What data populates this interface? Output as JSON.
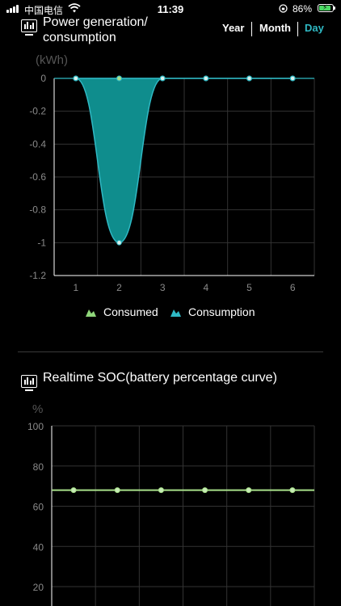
{
  "status_bar": {
    "carrier": "中国电信",
    "time": "11:39",
    "battery": "86%",
    "battery_level": 0.86
  },
  "section1": {
    "title": "Power generation/ consumption",
    "icon": "monitor-chart-icon",
    "periods": [
      "Year",
      "Month",
      "Day"
    ],
    "active_period": "Day",
    "unit": "(kWh)"
  },
  "section2": {
    "title": "Realtime SOC(battery percentage curve)",
    "icon": "monitor-chart-icon",
    "unit": "%"
  },
  "legend": {
    "consumed": "Consumed",
    "consumption": "Consumption"
  },
  "colors": {
    "accent": "#2fb9c4",
    "area_fill": "#0f8d8d",
    "consumed_green": "#8fd67a",
    "soc_line": "#a8e08a"
  },
  "chart_data": [
    {
      "type": "area",
      "x": [
        1,
        2,
        3,
        4,
        5,
        6
      ],
      "series": [
        {
          "name": "Consumed",
          "values": [
            0,
            0,
            0,
            0,
            0,
            0
          ]
        },
        {
          "name": "Consumption",
          "values": [
            0,
            -1,
            0,
            0,
            0,
            0
          ]
        }
      ],
      "yticks": [
        "0",
        "-0.2",
        "-0.4",
        "-0.6",
        "-0.8",
        "-1",
        "-1.2"
      ],
      "xticks": [
        "1",
        "2",
        "3",
        "4",
        "5",
        "6"
      ],
      "ylim": [
        -1.2,
        0
      ],
      "ylabel": "(kWh)",
      "grid": true,
      "legend": "bottom"
    },
    {
      "type": "line",
      "x": [
        1,
        2,
        3,
        4,
        5,
        6
      ],
      "series": [
        {
          "values": [
            68,
            68,
            68,
            68,
            68,
            68
          ]
        }
      ],
      "yticks": [
        "100",
        "80",
        "60",
        "40",
        "20"
      ],
      "ylim": [
        0,
        100
      ],
      "ylabel": "%",
      "grid": true
    }
  ]
}
